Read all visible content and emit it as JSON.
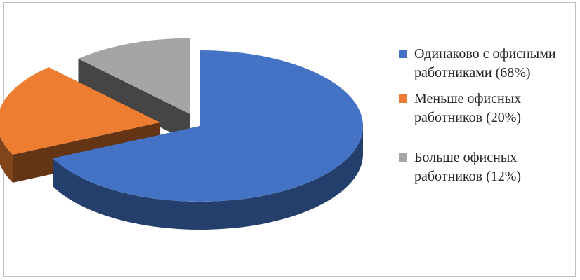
{
  "chart_data": {
    "type": "pie",
    "title": "",
    "three_d": true,
    "exploded": true,
    "legend_position": "right",
    "slices": [
      {
        "label": "Одинаково с офисными работниками (68%)",
        "value": 68,
        "color": "#4472C4"
      },
      {
        "label": "Меньше офисных работников (20%)",
        "value": 20,
        "color": "#ED7D31"
      },
      {
        "label": "Больше офисных работников (12%)",
        "value": 12,
        "color": "#A5A5A5"
      }
    ]
  }
}
